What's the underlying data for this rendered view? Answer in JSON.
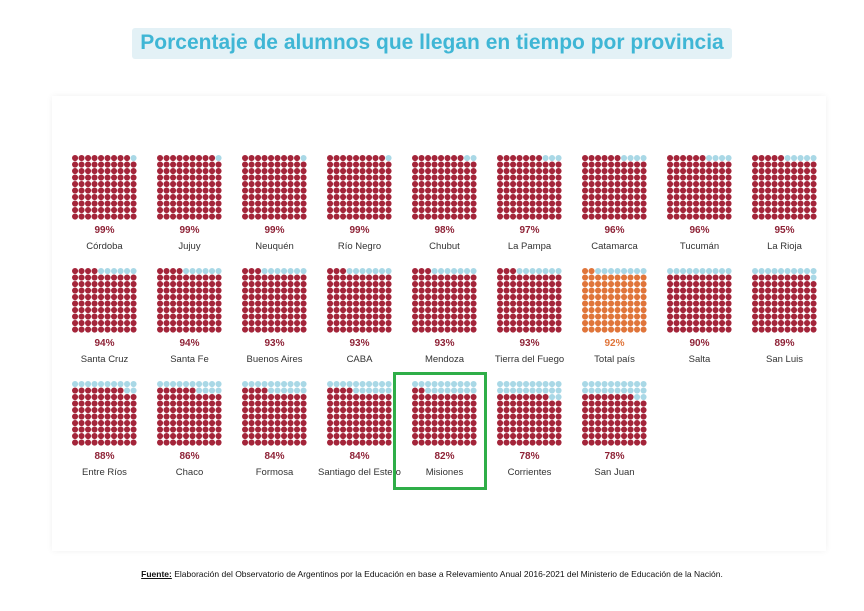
{
  "title": "Porcentaje de alumnos que llegan en tiempo por provincia",
  "source": {
    "label": "Fuente:",
    "text": "Elaboración del Observatorio de Argentinos por la Educación en base a Relevamiento Anual 2016-2021 del Ministerio de Educación de la Nación."
  },
  "colors": {
    "filled": "#a4253a",
    "filled_total": "#e0753a",
    "empty": "#a9d8e6",
    "pct_text": "#8e2236",
    "pct_text_total": "#e0753a",
    "highlight": "#2fae48"
  },
  "chart_data": {
    "type": "waffle",
    "grid": "10x10",
    "unit": "%",
    "items": [
      {
        "name": "Córdoba",
        "value": 99,
        "label": "99%"
      },
      {
        "name": "Jujuy",
        "value": 99,
        "label": "99%"
      },
      {
        "name": "Neuquén",
        "value": 99,
        "label": "99%"
      },
      {
        "name": "Río Negro",
        "value": 99,
        "label": "99%"
      },
      {
        "name": "Chubut",
        "value": 98,
        "label": "98%"
      },
      {
        "name": "La Pampa",
        "value": 97,
        "label": "97%"
      },
      {
        "name": "Catamarca",
        "value": 96,
        "label": "96%"
      },
      {
        "name": "Tucumán",
        "value": 96,
        "label": "96%"
      },
      {
        "name": "La Rioja",
        "value": 95,
        "label": "95%"
      },
      {
        "name": "Santa Cruz",
        "value": 94,
        "label": "94%"
      },
      {
        "name": "Santa Fe",
        "value": 94,
        "label": "94%"
      },
      {
        "name": "Buenos Aires",
        "value": 93,
        "label": "93%"
      },
      {
        "name": "CABA",
        "value": 93,
        "label": "93%"
      },
      {
        "name": "Mendoza",
        "value": 93,
        "label": "93%"
      },
      {
        "name": "Tierra del Fuego",
        "value": 93,
        "label": "93%"
      },
      {
        "name": "Total país",
        "value": 92,
        "label": "92%",
        "total": true
      },
      {
        "name": "Salta",
        "value": 90,
        "label": "90%"
      },
      {
        "name": "San Luis",
        "value": 89,
        "label": "89%"
      },
      {
        "name": "Entre Ríos",
        "value": 88,
        "label": "88%"
      },
      {
        "name": "Chaco",
        "value": 86,
        "label": "86%"
      },
      {
        "name": "Formosa",
        "value": 84,
        "label": "84%"
      },
      {
        "name": "Santiago del Estero",
        "value": 84,
        "label": "84%"
      },
      {
        "name": "Misiones",
        "value": 82,
        "label": "82%",
        "highlighted": true
      },
      {
        "name": "Corrientes",
        "value": 78,
        "label": "78%"
      },
      {
        "name": "San Juan",
        "value": 78,
        "label": "78%"
      }
    ]
  }
}
